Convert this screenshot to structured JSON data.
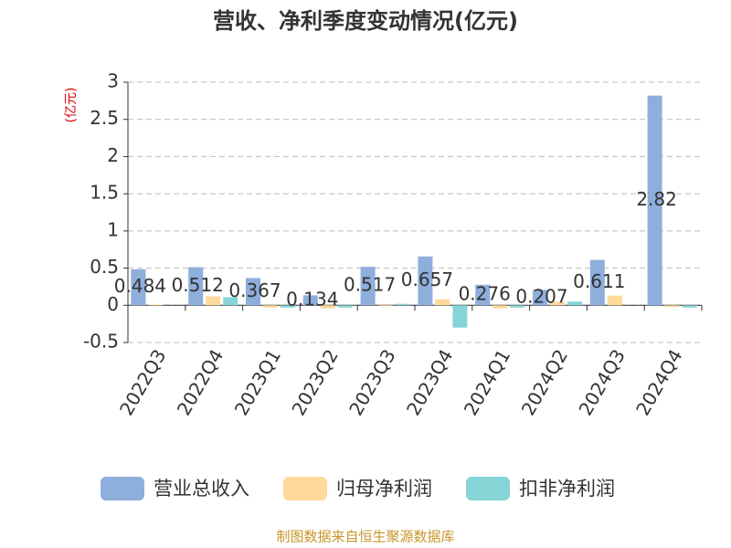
{
  "chart_data": {
    "type": "bar",
    "title": "营收、净利季度变动情况(亿元)",
    "y_label": "(亿元)",
    "categories": [
      "2022Q3",
      "2022Q4",
      "2023Q1",
      "2023Q2",
      "2023Q3",
      "2023Q4",
      "2024Q1",
      "2024Q2",
      "2024Q3",
      "2024Q4"
    ],
    "series": [
      {
        "name": "营业总收入",
        "color": "#8eaedc",
        "values": [
          0.484,
          0.512,
          0.367,
          0.134,
          0.517,
          0.657,
          0.276,
          0.207,
          0.611,
          2.82
        ],
        "show_labels": true
      },
      {
        "name": "归母净利润",
        "color": "#fdd99a",
        "values": [
          0.01,
          0.12,
          -0.03,
          -0.04,
          -0.01,
          0.08,
          -0.04,
          0.05,
          0.13,
          -0.02
        ]
      },
      {
        "name": "扣非净利润",
        "color": "#86d5d6",
        "values": [
          0.0,
          0.11,
          -0.03,
          -0.03,
          0.02,
          -0.3,
          -0.03,
          0.05,
          0.0,
          -0.03
        ]
      }
    ],
    "ylim": [
      -0.5,
      3
    ],
    "yticks": [
      -0.5,
      0,
      0.5,
      1,
      1.5,
      2,
      2.5,
      3
    ],
    "grid": true,
    "source": "制图数据来自恒生聚源数据库"
  }
}
